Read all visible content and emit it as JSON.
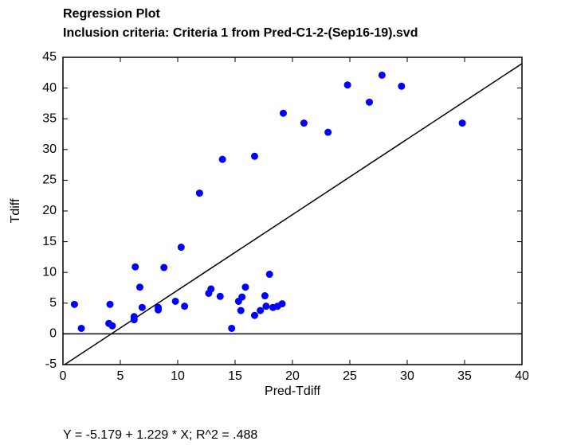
{
  "chart_data": {
    "type": "scatter",
    "title": "Regression Plot",
    "subtitle": "Inclusion criteria: Criteria 1 from Pred-C1-2-(Sep16-19).svd",
    "x_label": "Pred-Tdiff",
    "y_label": "Tdiff",
    "equation": "Y = -5.179 + 1.229 * X; R^2 = .488",
    "fit_line": {
      "intercept": -5.179,
      "slope": 1.229
    },
    "reference_line": 0,
    "color": "#0000ff",
    "xlim": [
      0,
      40
    ],
    "ylim": [
      -5,
      45
    ],
    "xticks": [
      0,
      5,
      10,
      15,
      20,
      25,
      30,
      35,
      40
    ],
    "yticks": [
      -5,
      0,
      5,
      10,
      15,
      20,
      25,
      30,
      35,
      40,
      45
    ],
    "x": [
      1.0,
      1.6,
      4.0,
      4.1,
      4.3,
      6.2,
      6.2,
      6.3,
      6.7,
      6.9,
      8.3,
      8.3,
      8.8,
      9.8,
      10.3,
      10.6,
      11.9,
      12.7,
      12.9,
      13.7,
      13.9,
      14.7,
      15.3,
      15.5,
      15.6,
      15.9,
      16.7,
      16.7,
      17.2,
      17.6,
      17.7,
      18.0,
      18.3,
      18.7,
      19.1,
      19.2,
      21.0,
      23.1,
      24.8,
      26.7,
      27.8,
      29.5,
      34.8
    ],
    "values": [
      4.8,
      0.9,
      1.7,
      4.8,
      1.3,
      2.8,
      2.3,
      10.9,
      7.6,
      4.3,
      3.9,
      4.3,
      10.8,
      5.3,
      14.1,
      4.5,
      22.9,
      6.6,
      7.3,
      6.1,
      28.4,
      0.9,
      5.3,
      3.8,
      6.0,
      7.6,
      28.9,
      3.0,
      3.8,
      6.2,
      4.5,
      9.7,
      4.3,
      4.5,
      4.9,
      35.9,
      34.3,
      32.8,
      40.5,
      37.7,
      42.1,
      40.3,
      34.3
    ]
  }
}
